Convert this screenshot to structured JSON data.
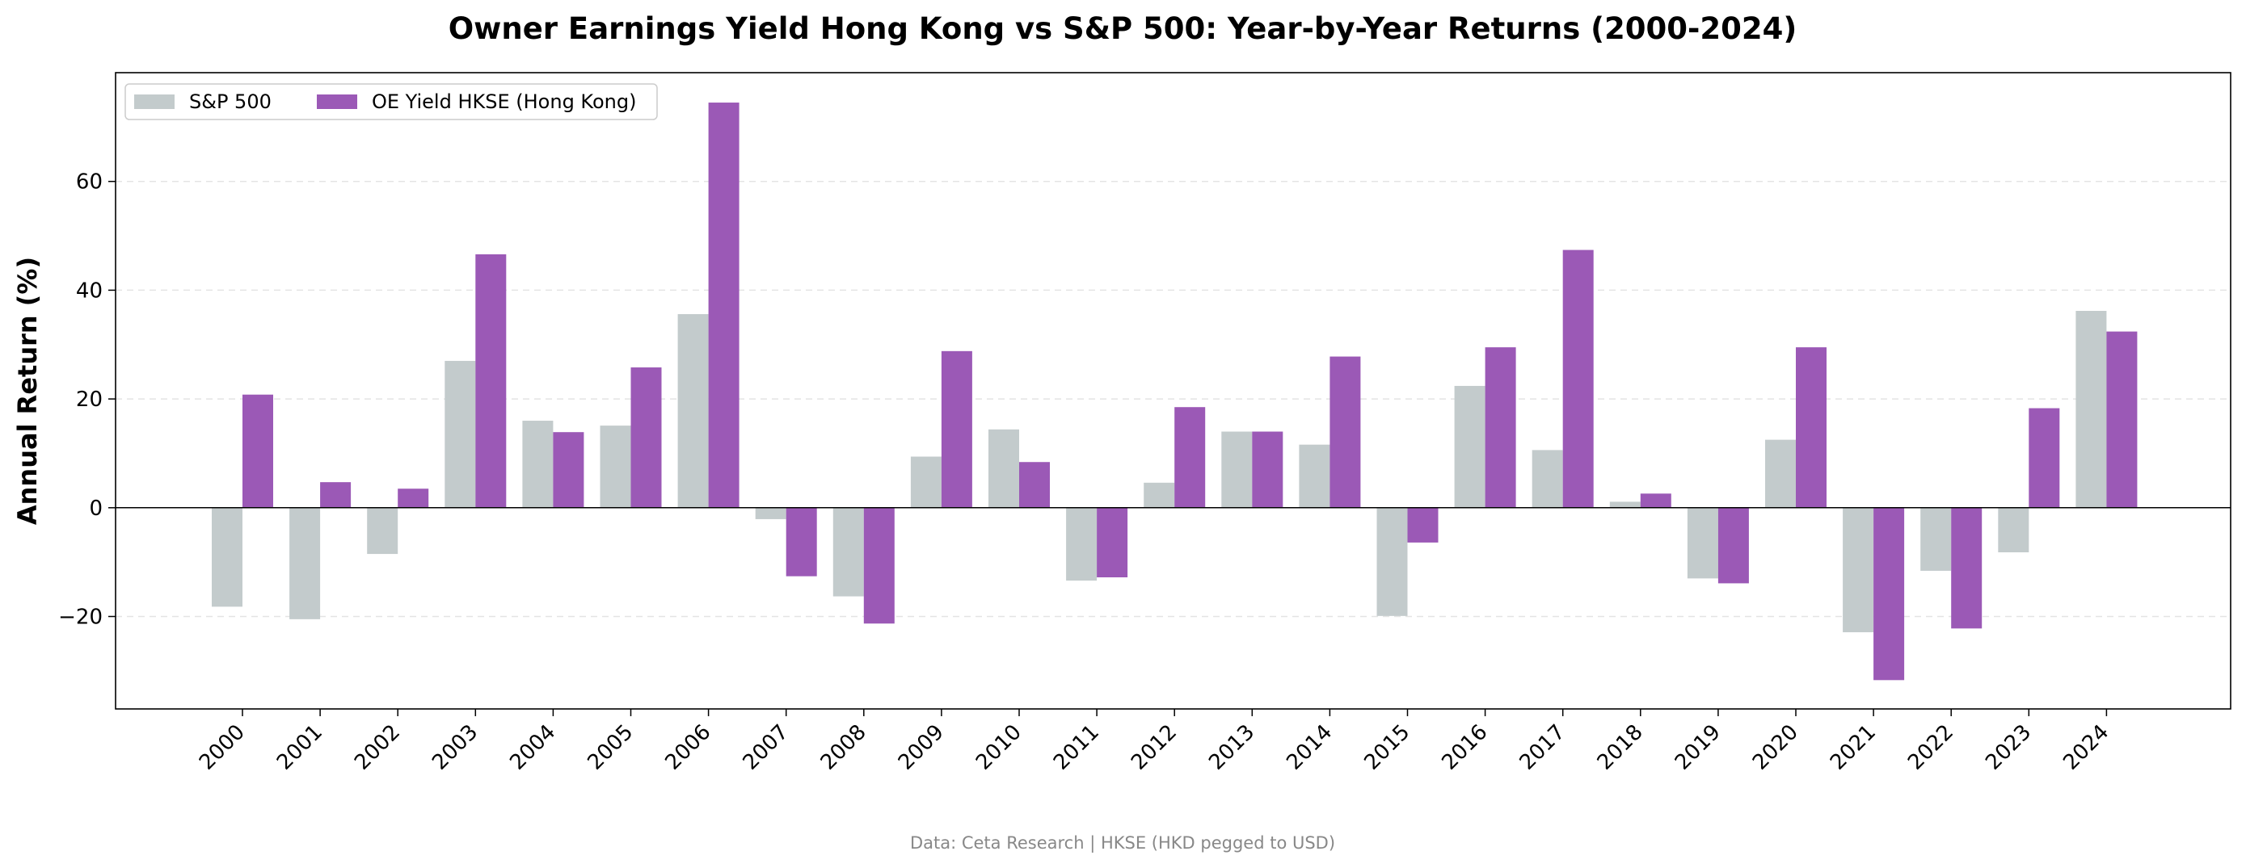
{
  "chart_data": {
    "type": "bar",
    "title": "Owner Earnings Yield Hong Kong vs S&P 500: Year-by-Year Returns (2000-2024)",
    "xlabel": "",
    "ylabel": "Annual Return (%)",
    "ylim": [
      -37,
      80
    ],
    "yticks": [
      -20,
      0,
      20,
      40,
      60
    ],
    "grid": "horizontal dashed",
    "legend_position": "top-left",
    "categories": [
      "2000",
      "2001",
      "2002",
      "2003",
      "2004",
      "2005",
      "2006",
      "2007",
      "2008",
      "2009",
      "2010",
      "2011",
      "2012",
      "2013",
      "2014",
      "2015",
      "2016",
      "2017",
      "2018",
      "2019",
      "2020",
      "2021",
      "2022",
      "2023",
      "2024"
    ],
    "series": [
      {
        "name": "S&P 500",
        "color": "#c3cbcc",
        "values": [
          -18.2,
          -20.5,
          -8.5,
          27.0,
          16.0,
          15.1,
          35.6,
          -2.1,
          -16.3,
          9.4,
          14.4,
          -13.4,
          4.6,
          14.0,
          11.6,
          -19.9,
          22.4,
          10.6,
          1.1,
          -13.0,
          12.5,
          -22.9,
          -11.6,
          -8.2,
          36.2
        ]
      },
      {
        "name": "OE Yield HKSE (Hong Kong)",
        "color": "#9b59b6",
        "values": [
          20.8,
          4.7,
          3.5,
          46.6,
          13.9,
          25.8,
          74.5,
          -12.6,
          -21.3,
          28.8,
          8.4,
          -12.8,
          18.5,
          14.0,
          27.8,
          -6.4,
          29.5,
          47.4,
          2.6,
          -13.9,
          29.5,
          -31.7,
          -22.2,
          18.3,
          32.4
        ]
      }
    ]
  },
  "footer": "Data: Ceta Research | HKSE (HKD pegged to USD)"
}
